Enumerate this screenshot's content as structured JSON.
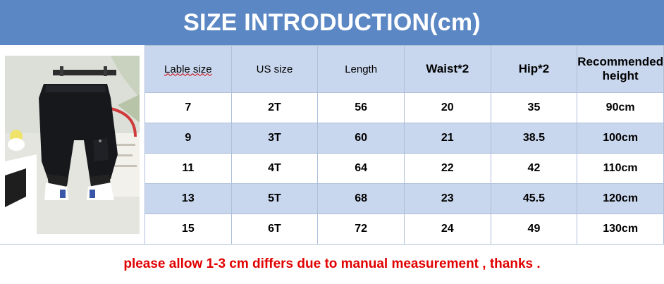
{
  "header": {
    "title": "SIZE INTRODUCTION(cm)"
  },
  "table": {
    "headers": [
      "Lable size",
      "US size",
      "Length",
      "Waist*2",
      "Hip*2",
      "Recommended height"
    ],
    "rows": [
      [
        "7",
        "2T",
        "56",
        "20",
        "35",
        "90cm"
      ],
      [
        "9",
        "3T",
        "60",
        "21",
        "38.5",
        "100cm"
      ],
      [
        "11",
        "4T",
        "64",
        "22",
        "42",
        "110cm"
      ],
      [
        "13",
        "5T",
        "68",
        "23",
        "45.5",
        "120cm"
      ],
      [
        "15",
        "6T",
        "72",
        "24",
        "49",
        "130cm"
      ]
    ]
  },
  "footer": {
    "note": "please allow 1-3 cm differs due to manual measurement , thanks ."
  },
  "colors": {
    "header_bg": "#5b87c4",
    "row_tint": "#c9d7ee",
    "note_text": "#e10000"
  }
}
